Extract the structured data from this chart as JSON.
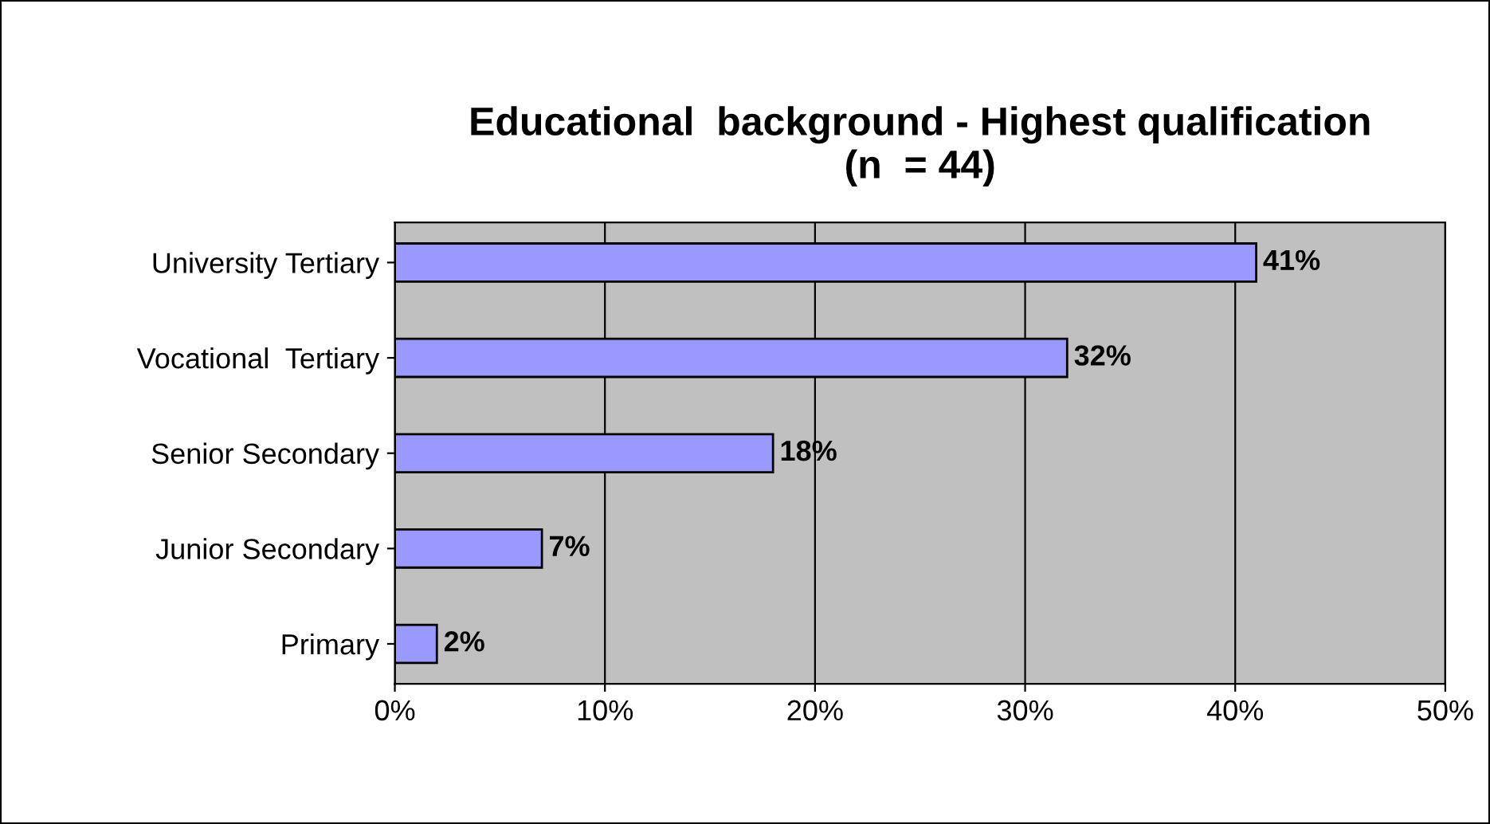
{
  "chart_data": {
    "type": "bar",
    "orientation": "horizontal",
    "title": "Educational  background - Highest qualification\n(n  = 44)",
    "categories": [
      "University Tertiary",
      "Vocational  Tertiary",
      "Senior Secondary",
      "Junior Secondary",
      "Primary"
    ],
    "values": [
      41,
      32,
      18,
      7,
      2
    ],
    "value_labels": [
      "41%",
      "32%",
      "18%",
      "7%",
      "2%"
    ],
    "color": "#9999ff",
    "xlim": [
      0,
      50
    ],
    "xticks": [
      {
        "value": 0,
        "label": "0%"
      },
      {
        "value": 10,
        "label": "10%"
      },
      {
        "value": 20,
        "label": "20%"
      },
      {
        "value": 30,
        "label": "30%"
      },
      {
        "value": 40,
        "label": "40%"
      },
      {
        "value": 50,
        "label": "50%"
      }
    ],
    "grid": "x",
    "legend": false
  }
}
